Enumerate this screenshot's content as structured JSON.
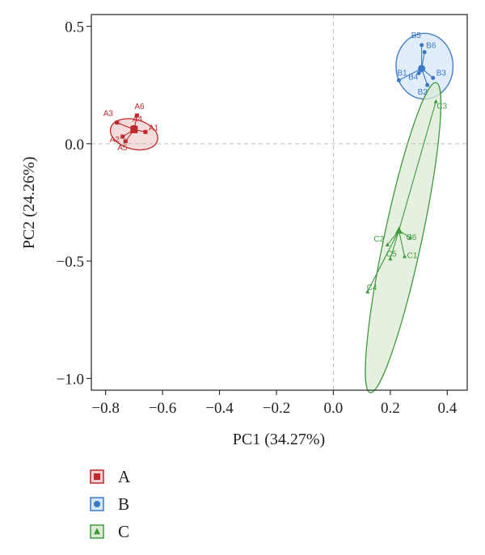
{
  "chart_data": {
    "type": "scatter",
    "xlabel": "PC1 (34.27%)",
    "ylabel": "PC2 (24.26%)",
    "xlim": [
      -0.85,
      0.47
    ],
    "ylim": [
      -1.05,
      0.55
    ],
    "xticks": [
      -0.8,
      -0.6,
      -0.4,
      -0.2,
      0.0,
      0.2,
      0.4
    ],
    "yticks": [
      -1.0,
      -0.5,
      0.0,
      0.5
    ],
    "xtick_labels": [
      "−0.8",
      "−0.4",
      "−0.2",
      "0.0",
      "0.2",
      "0.4"
    ],
    "xtick_labels_full": [
      "−0.8",
      "−0.6",
      "−0.4",
      "−0.2",
      "0.0",
      "0.2",
      "0.4"
    ],
    "ytick_labels": [
      "−1.0",
      "−0.5",
      "0.0",
      "0.5"
    ],
    "zero_lines": true,
    "grid": false,
    "legend_position": "bottom-left",
    "series": [
      {
        "name": "A",
        "color": "#c0282b",
        "fill": "#f2d0d0",
        "marker": "square",
        "centroid": [
          -0.7,
          0.06
        ],
        "ellipse": {
          "cx": -0.7,
          "cy": 0.04,
          "rx": 0.085,
          "ry": 0.063,
          "angle_deg": 15
        },
        "points": [
          {
            "label": "A1",
            "x": -0.66,
            "y": 0.05
          },
          {
            "label": "A2",
            "x": -0.74,
            "y": 0.03
          },
          {
            "label": "A3",
            "x": -0.76,
            "y": 0.09
          },
          {
            "label": "A4",
            "x": -0.7,
            "y": 0.07
          },
          {
            "label": "A5",
            "x": -0.73,
            "y": 0.01
          },
          {
            "label": "A6",
            "x": -0.69,
            "y": 0.12
          }
        ]
      },
      {
        "name": "B",
        "color": "#3a78c9",
        "fill": "#d7e7f8",
        "marker": "circle",
        "centroid": [
          0.31,
          0.32
        ],
        "ellipse": {
          "cx": 0.32,
          "cy": 0.33,
          "rx": 0.1,
          "ry": 0.14,
          "angle_deg": 0
        },
        "points": [
          {
            "label": "B1",
            "x": 0.23,
            "y": 0.27
          },
          {
            "label": "B2",
            "x": 0.33,
            "y": 0.25
          },
          {
            "label": "B3",
            "x": 0.35,
            "y": 0.28
          },
          {
            "label": "B4",
            "x": 0.3,
            "y": 0.3
          },
          {
            "label": "B5",
            "x": 0.31,
            "y": 0.42
          },
          {
            "label": "B6",
            "x": 0.32,
            "y": 0.39
          }
        ]
      },
      {
        "name": "C",
        "color": "#3e9a3e",
        "fill": "#dcebd6",
        "marker": "triangle",
        "centroid": [
          0.23,
          -0.37
        ],
        "ellipse": {
          "cx": 0.245,
          "cy": -0.4,
          "rx": 0.066,
          "ry": 0.675,
          "angle_deg": 12
        },
        "points": [
          {
            "label": "C1",
            "x": 0.25,
            "y": -0.48
          },
          {
            "label": "C2",
            "x": 0.19,
            "y": -0.43
          },
          {
            "label": "C3",
            "x": 0.36,
            "y": 0.18
          },
          {
            "label": "C4",
            "x": 0.12,
            "y": -0.63
          },
          {
            "label": "C5",
            "x": 0.2,
            "y": -0.49
          },
          {
            "label": "C6",
            "x": 0.27,
            "y": -0.4
          }
        ]
      }
    ]
  }
}
